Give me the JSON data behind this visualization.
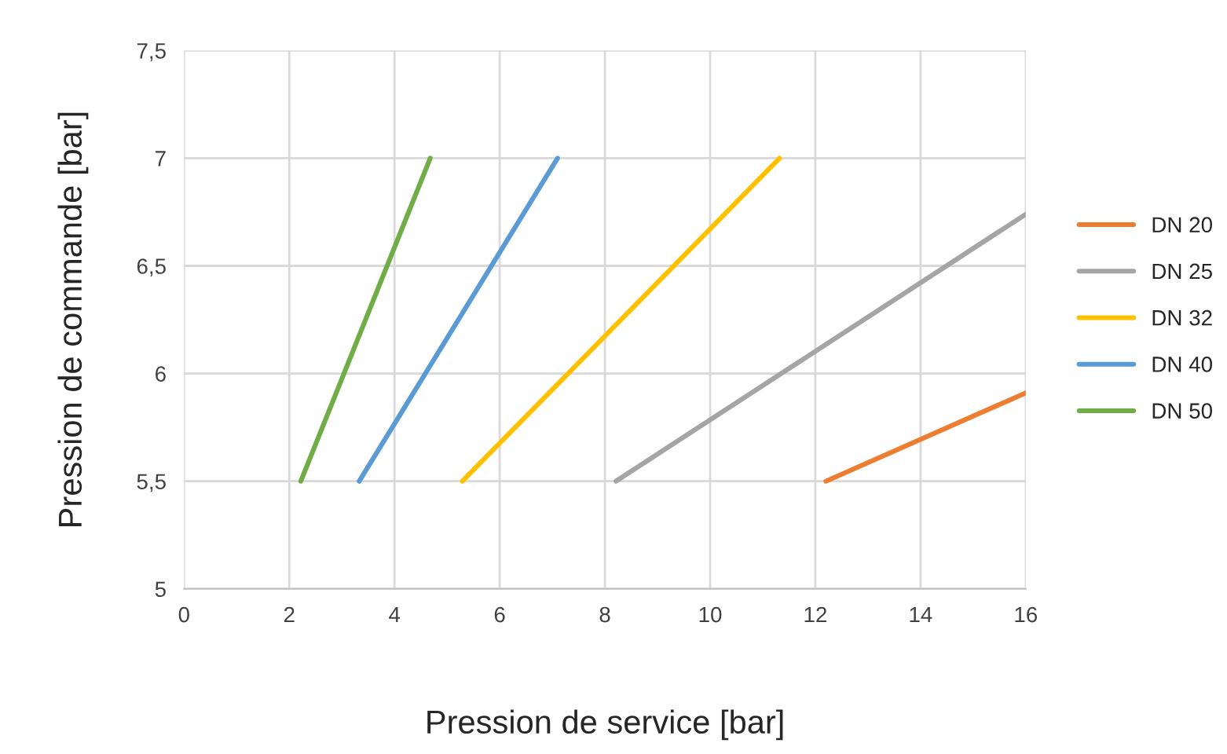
{
  "chart_data": {
    "type": "line",
    "xlabel": "Pression de service [bar]",
    "ylabel": "Pression de commande [bar]",
    "xlim": [
      0,
      16
    ],
    "xticks": [
      0,
      2,
      4,
      6,
      8,
      10,
      12,
      14,
      16
    ],
    "ylim": [
      5,
      7.5
    ],
    "yticks": [
      5,
      {
        "value": 5.5,
        "label": "5,5"
      },
      6,
      {
        "value": 6.5,
        "label": "6,5"
      },
      7,
      {
        "value": 7.5,
        "label": "7,5"
      }
    ],
    "grid": true,
    "legend": "right",
    "marker": "none",
    "line_style": "solid",
    "series": [
      {
        "name": "DN 20",
        "color": "#ed7d31",
        "x": [
          12.2,
          16
        ],
        "values": [
          5.5,
          5.91
        ]
      },
      {
        "name": "DN 25",
        "color": "#a5a5a5",
        "x": [
          8.21,
          16
        ],
        "values": [
          5.5,
          6.74
        ]
      },
      {
        "name": "DN 32",
        "color": "#ffc000",
        "x": [
          5.29,
          11.32
        ],
        "values": [
          5.5,
          7
        ]
      },
      {
        "name": "DN 40",
        "color": "#5b9bd5",
        "x": [
          3.33,
          7.1
        ],
        "values": [
          5.5,
          7
        ]
      },
      {
        "name": "DN 50",
        "color": "#70ad47",
        "x": [
          2.22,
          4.68
        ],
        "values": [
          5.5,
          7
        ]
      }
    ]
  }
}
